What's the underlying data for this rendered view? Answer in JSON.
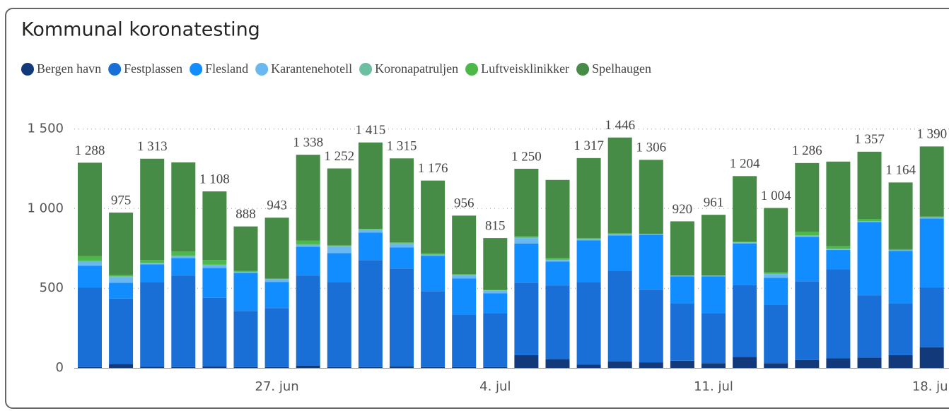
{
  "chart_data": {
    "type": "stacked-bar",
    "title": "Kommunal koronatesting",
    "categories": [
      null,
      null,
      null,
      null,
      null,
      null,
      "27. jun",
      null,
      null,
      null,
      null,
      null,
      null,
      "4. jul",
      null,
      null,
      null,
      null,
      null,
      null,
      "11. jul",
      null,
      null,
      null,
      null,
      null,
      null,
      "18. jul"
    ],
    "series": [
      {
        "name": "Bergen havn",
        "color": "#12397a",
        "values": [
          5,
          25,
          8,
          5,
          10,
          5,
          5,
          15,
          5,
          5,
          10,
          5,
          5,
          5,
          80,
          55,
          20,
          40,
          35,
          45,
          30,
          70,
          30,
          50,
          60,
          65,
          80,
          130
        ]
      },
      {
        "name": "Festplassen",
        "color": "#1a6fd6",
        "values": [
          500,
          410,
          532,
          575,
          430,
          353,
          371,
          565,
          535,
          672,
          614,
          477,
          331,
          340,
          455,
          463,
          520,
          571,
          456,
          362,
          315,
          452,
          368,
          494,
          560,
          391,
          327,
          375
        ]
      },
      {
        "name": "Flesland",
        "color": "#118dff",
        "values": [
          137,
          100,
          110,
          110,
          188,
          239,
          164,
          181,
          181,
          173,
          133,
          222,
          226,
          124,
          245,
          150,
          260,
          221,
          345,
          168,
          230,
          258,
          168,
          279,
          120,
          460,
          328,
          433
        ]
      },
      {
        "name": "Karantenehotell",
        "color": "#6bb8f0",
        "values": [
          25,
          35,
          5,
          10,
          15,
          5,
          18,
          10,
          40,
          17,
          23,
          5,
          20,
          15,
          35,
          9,
          5,
          5,
          3,
          3,
          3,
          5,
          23,
          5,
          3,
          3,
          3,
          5
        ]
      },
      {
        "name": "Koronapatruljen",
        "color": "#6cbfa0",
        "values": [
          5,
          5,
          5,
          5,
          5,
          3,
          2,
          5,
          5,
          3,
          3,
          3,
          3,
          3,
          5,
          3,
          5,
          5,
          2,
          2,
          2,
          3,
          3,
          5,
          5,
          3,
          2,
          3
        ]
      },
      {
        "name": "Luftveisklinikker",
        "color": "#4cb84a",
        "values": [
          30,
          10,
          17,
          25,
          29,
          3,
          0,
          24,
          5,
          3,
          5,
          8,
          3,
          3,
          7,
          10,
          5,
          3,
          0,
          0,
          0,
          4,
          8,
          22,
          17,
          13,
          5,
          4
        ]
      },
      {
        "name": "Spelhaugen",
        "color": "#468c47",
        "values": [
          586,
          390,
          636,
          560,
          431,
          280,
          383,
          538,
          481,
          542,
          527,
          456,
          368,
          325,
          423,
          490,
          502,
          601,
          465,
          340,
          381,
          412,
          404,
          431,
          530,
          422,
          419,
          440
        ]
      }
    ],
    "totals": [
      1288,
      975,
      1313,
      null,
      1108,
      888,
      943,
      1338,
      1252,
      1415,
      1315,
      1176,
      956,
      815,
      1250,
      null,
      1317,
      1446,
      1306,
      920,
      961,
      1204,
      1004,
      1286,
      null,
      1357,
      1164,
      1390
    ],
    "total_labels": [
      "1 288",
      "975",
      "1 313",
      null,
      "1 108",
      "888",
      "943",
      "1 338",
      "1 252",
      "1 415",
      "1 315",
      "1 176",
      "956",
      "815",
      "1 250",
      null,
      "1 317",
      "1 446",
      "1 306",
      "920",
      "961",
      "1 204",
      "1 004",
      "1 286",
      null,
      "1 357",
      "1 164",
      "1 390"
    ],
    "ylim": [
      0,
      1600
    ],
    "yticks": [
      0,
      500,
      {
        "value": 1000,
        "label": "1 000"
      },
      {
        "value": 1500,
        "label": "1 500"
      }
    ],
    "grid": true
  }
}
